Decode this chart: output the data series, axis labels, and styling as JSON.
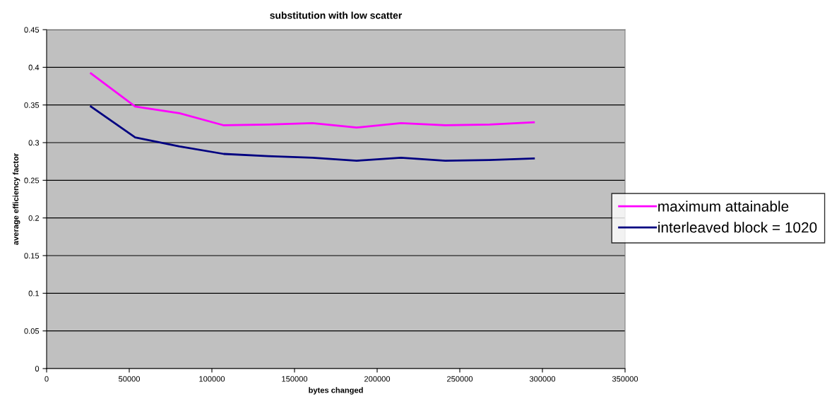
{
  "chart_data": {
    "type": "line",
    "title": "substitution with low scatter",
    "xlabel": "bytes changed",
    "ylabel": "average efficiency factor",
    "x": [
      26800,
      53600,
      80400,
      107200,
      134000,
      160800,
      187600,
      214400,
      241200,
      268000,
      294800
    ],
    "series": [
      {
        "name": "maximum attainable",
        "color": "#ff00ff",
        "values": [
          0.392,
          0.348,
          0.339,
          0.323,
          0.324,
          0.326,
          0.32,
          0.326,
          0.323,
          0.324,
          0.327
        ]
      },
      {
        "name": "interleaved block = 1020",
        "color": "#000080",
        "values": [
          0.348,
          0.307,
          0.295,
          0.285,
          0.282,
          0.28,
          0.276,
          0.28,
          0.276,
          0.277,
          0.279
        ]
      }
    ],
    "xlim": [
      0,
      350000
    ],
    "xticks": [
      0,
      50000,
      100000,
      150000,
      200000,
      250000,
      300000,
      350000
    ],
    "ylim": [
      0,
      0.45
    ],
    "yticks": [
      0,
      0.05,
      0.1,
      0.15,
      0.2,
      0.25,
      0.3,
      0.35,
      0.4,
      0.45
    ],
    "grid": "y",
    "legend": "right",
    "marker": "none",
    "line_style": "solid"
  }
}
